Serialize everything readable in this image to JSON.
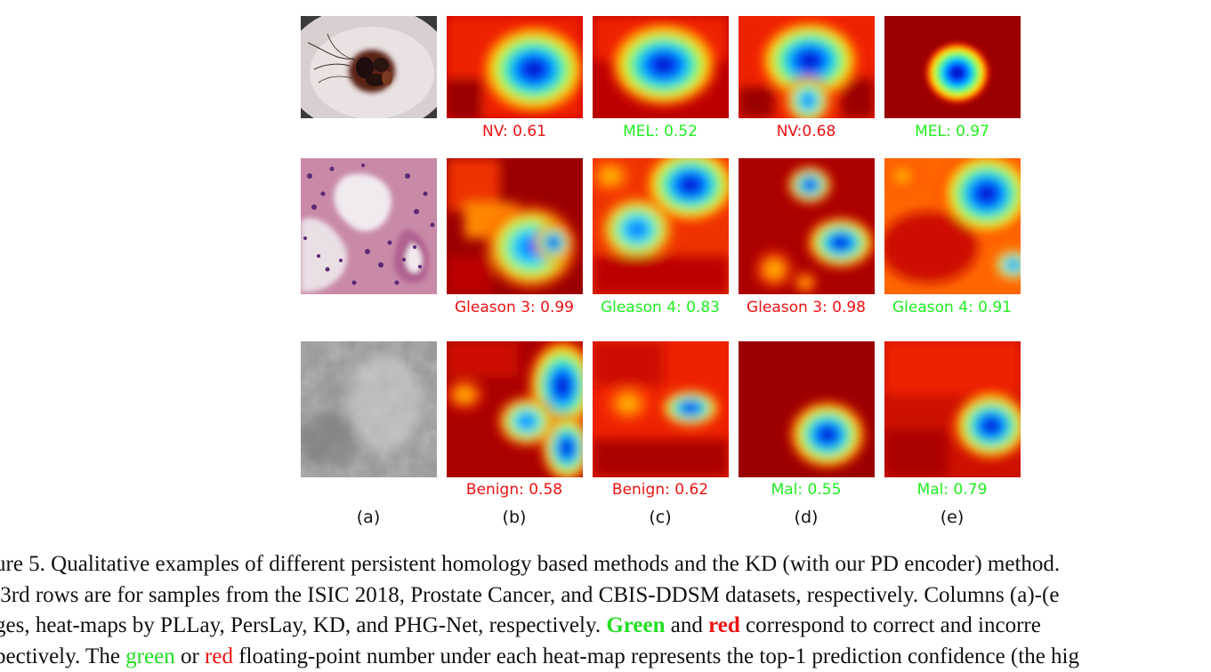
{
  "figure": {
    "rows": [
      {
        "id": "isic",
        "labels": [
          {
            "text": "NV: 0.61",
            "correct": false
          },
          {
            "text": "MEL: 0.52",
            "correct": true
          },
          {
            "text": "NV:0.68",
            "correct": false
          },
          {
            "text": "MEL: 0.97",
            "correct": true
          }
        ]
      },
      {
        "id": "prostate",
        "labels": [
          {
            "text": "Gleason 3: 0.99",
            "correct": false
          },
          {
            "text": "Gleason 4: 0.83",
            "correct": true
          },
          {
            "text": "Gleason 3: 0.98",
            "correct": false
          },
          {
            "text": "Gleason 4: 0.91",
            "correct": true
          }
        ]
      },
      {
        "id": "cbis-ddsm",
        "labels": [
          {
            "text": "Benign: 0.58",
            "correct": false
          },
          {
            "text": "Benign: 0.62",
            "correct": false
          },
          {
            "text": "Mal: 0.55",
            "correct": true
          },
          {
            "text": "Mal: 0.79",
            "correct": true
          }
        ]
      }
    ],
    "column_letters": [
      "(a)",
      "(b)",
      "(c)",
      "(d)",
      "(e)"
    ],
    "colors": {
      "correct": "#22ee22",
      "incorrect": "#ee1111"
    }
  },
  "caption": {
    "line1": "ure 5. Qualitative examples of different persistent homology based methods and the KD (with our PD encoder) method.",
    "line2": " 3rd rows are for samples from the ISIC 2018, Prostate Cancer, and CBIS-DDSM datasets, respectively. Columns (a)-(e",
    "line3_a": "ges, heat-maps by PLLay, PersLay, KD, and PHG-Net, respectively. ",
    "line3_green": "Green",
    "line3_and": " and ",
    "line3_red": "red",
    "line3_b": " correspond to correct and incorre",
    "line4_a": "pectively. The ",
    "line4_green": "green",
    "line4_or": " or ",
    "line4_red": "red",
    "line4_b": " floating-point number under each heat-map represents the top-1 prediction confidence (the hig"
  }
}
